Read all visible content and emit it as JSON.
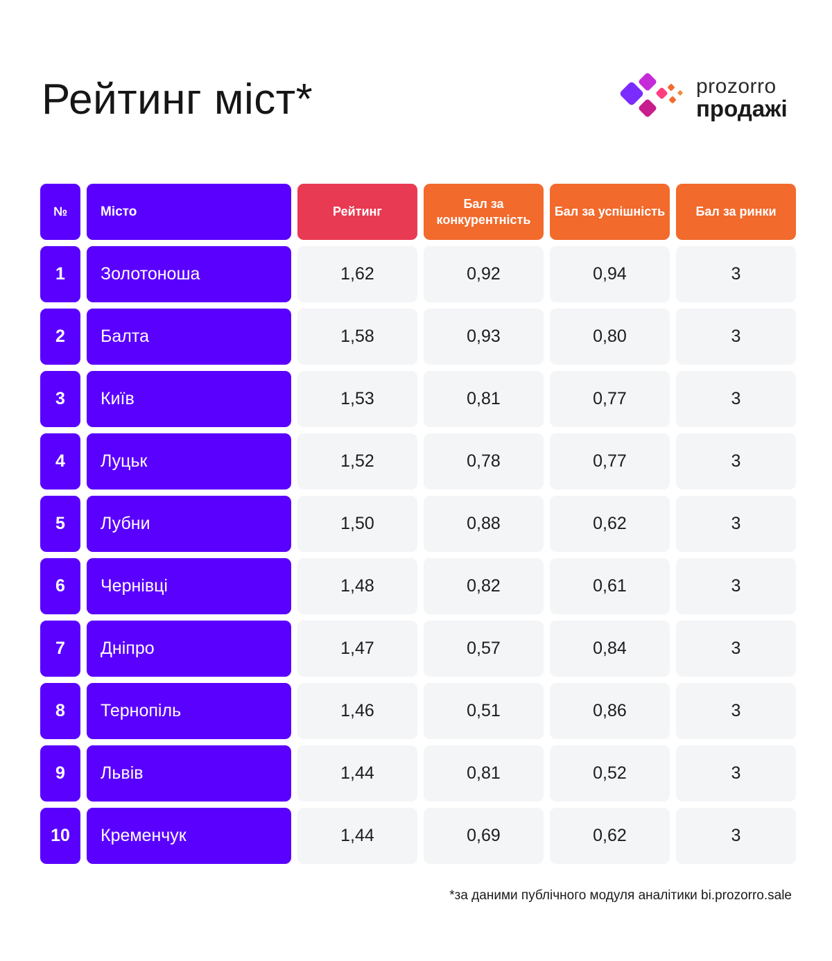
{
  "title": "Рейтинг міст*",
  "logo": {
    "line1": "prozorro",
    "line2": "продажі",
    "colors": [
      "#8a2be2",
      "#c81d8c",
      "#ff4fa8",
      "#f26a2c"
    ]
  },
  "colors": {
    "accent_purple": "#5a00ff",
    "header_red": "#e83a52",
    "header_orange": "#f26a2c",
    "value_bg": "#f3f5f7"
  },
  "table": {
    "headers": {
      "num": "№",
      "city": "Місто",
      "rating": "Рейтинг",
      "competition": "Бал за конкурентність",
      "success": "Бал за успішність",
      "markets": "Бал за ринки"
    },
    "rows": [
      {
        "num": "1",
        "city": "Золотоноша",
        "rating": "1,62",
        "competition": "0,92",
        "success": "0,94",
        "markets": "3"
      },
      {
        "num": "2",
        "city": "Балта",
        "rating": "1,58",
        "competition": "0,93",
        "success": "0,80",
        "markets": "3"
      },
      {
        "num": "3",
        "city": "Київ",
        "rating": "1,53",
        "competition": "0,81",
        "success": "0,77",
        "markets": "3"
      },
      {
        "num": "4",
        "city": "Луцьк",
        "rating": "1,52",
        "competition": "0,78",
        "success": "0,77",
        "markets": "3"
      },
      {
        "num": "5",
        "city": "Лубни",
        "rating": "1,50",
        "competition": "0,88",
        "success": "0,62",
        "markets": "3"
      },
      {
        "num": "6",
        "city": "Чернівці",
        "rating": "1,48",
        "competition": "0,82",
        "success": "0,61",
        "markets": "3"
      },
      {
        "num": "7",
        "city": "Дніпро",
        "rating": "1,47",
        "competition": "0,57",
        "success": "0,84",
        "markets": "3"
      },
      {
        "num": "8",
        "city": "Тернопіль",
        "rating": "1,46",
        "competition": "0,51",
        "success": "0,86",
        "markets": "3"
      },
      {
        "num": "9",
        "city": "Львів",
        "rating": "1,44",
        "competition": "0,81",
        "success": "0,52",
        "markets": "3"
      },
      {
        "num": "10",
        "city": "Кременчук",
        "rating": "1,44",
        "competition": "0,69",
        "success": "0,62",
        "markets": "3"
      }
    ]
  },
  "footnote": "*за даними публічного модуля аналітики bi.prozorro.sale"
}
